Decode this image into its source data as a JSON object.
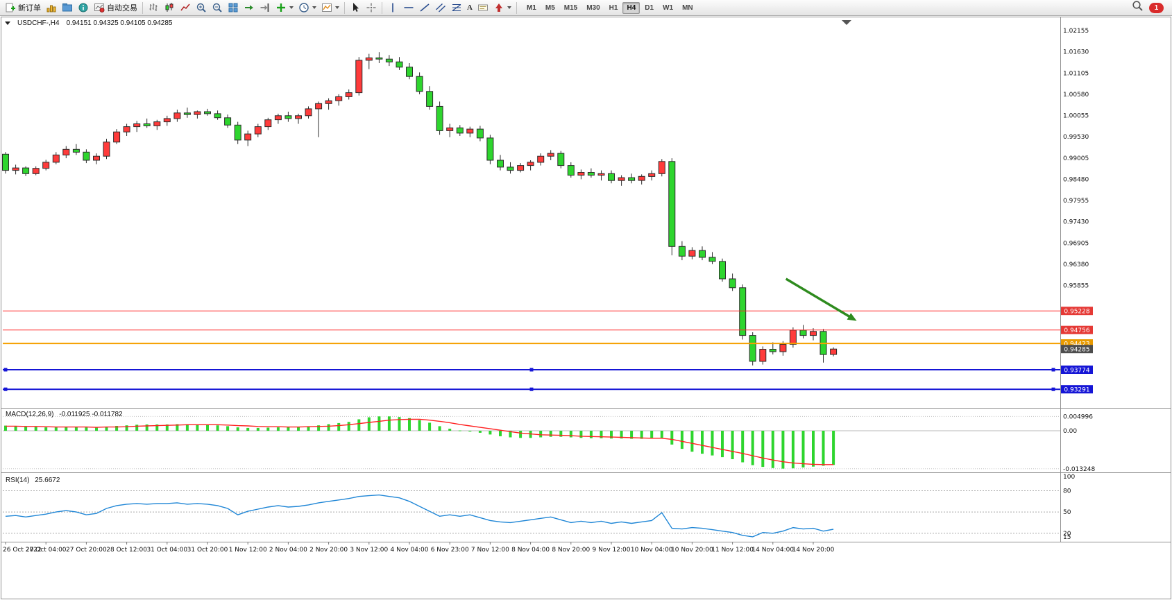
{
  "toolbar": {
    "new_order_label": "新订单",
    "auto_trading_label": "自动交易",
    "text_tool_label": "A",
    "timeframes": [
      "M1",
      "M5",
      "M15",
      "M30",
      "H1",
      "H4",
      "D1",
      "W1",
      "MN"
    ],
    "active_timeframe": "H4",
    "notification_badge": "1"
  },
  "chart": {
    "title_symbol": "USDCHF-,H4",
    "title_ohlc": "0.94151 0.94325 0.94105 0.94285",
    "macd_label": "MACD(12,26,9)",
    "macd_values": "-0.011925 -0.011782",
    "rsi_label": "RSI(14)",
    "rsi_value": "25.6672"
  },
  "chart_data": {
    "type": "candlestick",
    "symbol": "USDCHF-",
    "timeframe": "H4",
    "current_bar": {
      "open": 0.94151,
      "high": 0.94325,
      "low": 0.94105,
      "close": 0.94285
    },
    "colors": {
      "up": "#ff3b3b",
      "down": "#2ed52e",
      "wick": "#2b2b2b",
      "macd_hist": "#2ed52e",
      "macd_signal": "#ff2020",
      "rsi_line": "#1f86d6"
    },
    "price_axis": {
      "top_price": 1.02464,
      "bottom_price": 0.92831,
      "labels": [
        "1.02155",
        "1.01630",
        "1.01105",
        "1.00580",
        "1.00055",
        "0.99530",
        "0.99005",
        "0.98480",
        "0.97955",
        "0.97430",
        "0.96905",
        "0.96380",
        "0.95855"
      ]
    },
    "time_labels": [
      "26 Oct 2022",
      "27 Oct 04:00",
      "27 Oct 20:00",
      "28 Oct 12:00",
      "31 Oct 04:00",
      "31 Oct 20:00",
      "1 Nov 12:00",
      "2 Nov 04:00",
      "2 Nov 20:00",
      "3 Nov 12:00",
      "4 Nov 04:00",
      "6 Nov 23:00",
      "7 Nov 12:00",
      "8 Nov 04:00",
      "8 Nov 20:00",
      "9 Nov 12:00",
      "10 Nov 04:00",
      "10 Nov 20:00",
      "11 Nov 12:00",
      "14 Nov 04:00",
      "14 Nov 20:00"
    ],
    "bars_per_time_label": 4,
    "candles": [
      [
        0.991,
        0.9915,
        0.9862,
        0.987
      ],
      [
        0.987,
        0.9884,
        0.986,
        0.9876
      ],
      [
        0.9876,
        0.988,
        0.9856,
        0.9862
      ],
      [
        0.9862,
        0.988,
        0.9858,
        0.9875
      ],
      [
        0.9875,
        0.9896,
        0.987,
        0.989
      ],
      [
        0.989,
        0.9915,
        0.9885,
        0.9908
      ],
      [
        0.9908,
        0.993,
        0.99,
        0.9922
      ],
      [
        0.9922,
        0.9935,
        0.9908,
        0.9915
      ],
      [
        0.9915,
        0.9922,
        0.9888,
        0.9895
      ],
      [
        0.9895,
        0.9912,
        0.9885,
        0.9905
      ],
      [
        0.9905,
        0.9948,
        0.9898,
        0.994
      ],
      [
        0.994,
        0.9972,
        0.9935,
        0.9965
      ],
      [
        0.9965,
        0.9985,
        0.9955,
        0.9978
      ],
      [
        0.9978,
        0.9992,
        0.9965,
        0.9985
      ],
      [
        0.9985,
        0.9998,
        0.9975,
        0.998
      ],
      [
        0.998,
        0.9995,
        0.997,
        0.999
      ],
      [
        0.999,
        1.0005,
        0.998,
        0.9998
      ],
      [
        0.9998,
        1.002,
        0.999,
        1.0012
      ],
      [
        1.0012,
        1.0025,
        1.0,
        1.0008
      ],
      [
        1.0008,
        1.0018,
        0.9998,
        1.0015
      ],
      [
        1.0015,
        1.0022,
        1.0005,
        1.001
      ],
      [
        1.001,
        1.0018,
        0.9995,
        1.0
      ],
      [
        1.0,
        1.0008,
        0.9975,
        0.9982
      ],
      [
        0.9982,
        0.999,
        0.9935,
        0.9945
      ],
      [
        0.9945,
        0.9968,
        0.993,
        0.996
      ],
      [
        0.996,
        0.9985,
        0.9952,
        0.9978
      ],
      [
        0.9978,
        1.0,
        0.997,
        0.9995
      ],
      [
        0.9995,
        1.001,
        0.9985,
        1.0005
      ],
      [
        1.0005,
        1.0015,
        0.999,
        0.9998
      ],
      [
        0.9998,
        1.001,
        0.9985,
        1.0005
      ],
      [
        1.0005,
        1.0028,
        0.9998,
        1.0022
      ],
      [
        1.0022,
        1.004,
        0.9952,
        1.0035
      ],
      [
        1.0035,
        1.0048,
        1.002,
        1.0042
      ],
      [
        1.0042,
        1.0058,
        1.003,
        1.0052
      ],
      [
        1.0052,
        1.007,
        1.0045,
        1.0062
      ],
      [
        1.0062,
        1.015,
        1.0055,
        1.0142
      ],
      [
        1.0142,
        1.0158,
        1.012,
        1.0148
      ],
      [
        1.0148,
        1.0162,
        1.0135,
        1.0145
      ],
      [
        1.0145,
        1.0155,
        1.0128,
        1.0138
      ],
      [
        1.0138,
        1.015,
        1.0118,
        1.0125
      ],
      [
        1.0125,
        1.0135,
        1.0095,
        1.0102
      ],
      [
        1.0102,
        1.0112,
        1.0058,
        1.0065
      ],
      [
        1.0065,
        1.0078,
        1.002,
        1.0028
      ],
      [
        1.0028,
        1.004,
        0.9958,
        0.9968
      ],
      [
        0.9968,
        0.9985,
        0.9952,
        0.9975
      ],
      [
        0.9975,
        0.9982,
        0.9955,
        0.9962
      ],
      [
        0.9962,
        0.9978,
        0.9952,
        0.9972
      ],
      [
        0.9972,
        0.998,
        0.9942,
        0.995
      ],
      [
        0.995,
        0.9958,
        0.9885,
        0.9895
      ],
      [
        0.9895,
        0.9908,
        0.987,
        0.9878
      ],
      [
        0.9878,
        0.989,
        0.9862,
        0.987
      ],
      [
        0.987,
        0.9888,
        0.9865,
        0.9882
      ],
      [
        0.9882,
        0.9895,
        0.987,
        0.989
      ],
      [
        0.989,
        0.9912,
        0.9882,
        0.9905
      ],
      [
        0.9905,
        0.992,
        0.9895,
        0.9912
      ],
      [
        0.9912,
        0.9918,
        0.9875,
        0.9882
      ],
      [
        0.9882,
        0.989,
        0.9852,
        0.9858
      ],
      [
        0.9858,
        0.9872,
        0.9848,
        0.9865
      ],
      [
        0.9865,
        0.9875,
        0.9852,
        0.9858
      ],
      [
        0.9858,
        0.987,
        0.9845,
        0.9862
      ],
      [
        0.9862,
        0.987,
        0.9838,
        0.9845
      ],
      [
        0.9845,
        0.9858,
        0.9832,
        0.9852
      ],
      [
        0.9852,
        0.9862,
        0.9838,
        0.9845
      ],
      [
        0.9845,
        0.986,
        0.9835,
        0.9855
      ],
      [
        0.9855,
        0.987,
        0.9845,
        0.9862
      ],
      [
        0.9862,
        0.9898,
        0.9855,
        0.9892
      ],
      [
        0.9892,
        0.99,
        0.966,
        0.9682
      ],
      [
        0.9682,
        0.9695,
        0.9648,
        0.9658
      ],
      [
        0.9658,
        0.968,
        0.965,
        0.9672
      ],
      [
        0.9672,
        0.9682,
        0.9648,
        0.9655
      ],
      [
        0.9655,
        0.9668,
        0.9638,
        0.9645
      ],
      [
        0.9645,
        0.9652,
        0.9595,
        0.9602
      ],
      [
        0.9602,
        0.9615,
        0.9572,
        0.958
      ],
      [
        0.958,
        0.9588,
        0.9452,
        0.9462
      ],
      [
        0.9462,
        0.947,
        0.9388,
        0.9398
      ],
      [
        0.9398,
        0.9435,
        0.939,
        0.9428
      ],
      [
        0.9428,
        0.9445,
        0.9415,
        0.9422
      ],
      [
        0.9422,
        0.9448,
        0.9412,
        0.944
      ],
      [
        0.944,
        0.9482,
        0.9432,
        0.9475
      ],
      [
        0.9475,
        0.9488,
        0.9455,
        0.9462
      ],
      [
        0.9462,
        0.948,
        0.945,
        0.9472
      ],
      [
        0.9472,
        0.9478,
        0.9395,
        0.9415
      ],
      [
        0.94151,
        0.94325,
        0.94105,
        0.94285
      ]
    ],
    "h_lines": [
      {
        "price": 0.95228,
        "label": "0.95228",
        "color": "#ff2b2b",
        "tag_color": "#e53935",
        "width": 1,
        "selected": false
      },
      {
        "price": 0.94756,
        "label": "0.94756",
        "color": "#ff2b2b",
        "tag_color": "#e53935",
        "width": 1,
        "selected": false
      },
      {
        "price": 0.94423,
        "label": "0.94423",
        "color": "#f5a000",
        "tag_color": "#e89a00",
        "width": 2,
        "selected": false
      },
      {
        "price": 0.93774,
        "label": "0.93774",
        "color": "#1515d6",
        "tag_color": "#1515d6",
        "width": 2,
        "selected": true
      },
      {
        "price": 0.93291,
        "label": "0.93291",
        "color": "#1515d6",
        "tag_color": "#1515d6",
        "width": 2,
        "selected": true
      }
    ],
    "current_price": {
      "price": 0.94285,
      "label": "0.94285",
      "tag_color": "#4d4d4d"
    },
    "arrow": {
      "from_bar": 77.3,
      "from_price": 0.9602,
      "to_bar": 84.3,
      "to_price": 0.9498,
      "color": "#2e8b1e"
    },
    "macd": {
      "scale_max": 0.0075,
      "scale_min": -0.0145,
      "axis_labels": [
        {
          "v": 0.004996,
          "t": "0.004996"
        },
        {
          "v": 0,
          "t": "0.00"
        },
        {
          "v": -0.013248,
          "t": "-0.013248"
        }
      ],
      "histogram": [
        0.0018,
        0.0016,
        0.0015,
        0.0013,
        0.0012,
        0.0012,
        0.0013,
        0.0013,
        0.0012,
        0.0012,
        0.0014,
        0.0017,
        0.0019,
        0.0021,
        0.0022,
        0.0022,
        0.0022,
        0.0023,
        0.0023,
        0.0022,
        0.0021,
        0.0019,
        0.0016,
        0.0012,
        0.001,
        0.001,
        0.0011,
        0.0012,
        0.0013,
        0.0014,
        0.0016,
        0.0019,
        0.0023,
        0.0027,
        0.0031,
        0.004,
        0.0047,
        0.005,
        0.005,
        0.0048,
        0.0044,
        0.0037,
        0.0028,
        0.0016,
        0.0007,
        0.0001,
        -0.0003,
        -0.0007,
        -0.0013,
        -0.0019,
        -0.0023,
        -0.0025,
        -0.0025,
        -0.0023,
        -0.0021,
        -0.0021,
        -0.0023,
        -0.0025,
        -0.0026,
        -0.0026,
        -0.0027,
        -0.0027,
        -0.0028,
        -0.0028,
        -0.0027,
        -0.0025,
        -0.0048,
        -0.0063,
        -0.0073,
        -0.008,
        -0.0086,
        -0.0092,
        -0.0099,
        -0.011,
        -0.012,
        -0.0126,
        -0.013,
        -0.0132,
        -0.0131,
        -0.0128,
        -0.0125,
        -0.0122,
        -0.011925
      ],
      "signal": [
        0.0016,
        0.0016,
        0.0015,
        0.0015,
        0.0014,
        0.0013,
        0.0013,
        0.0013,
        0.0013,
        0.0012,
        0.0013,
        0.0013,
        0.0014,
        0.0016,
        0.0017,
        0.0018,
        0.0019,
        0.002,
        0.0021,
        0.0021,
        0.0021,
        0.0021,
        0.002,
        0.0018,
        0.0017,
        0.0015,
        0.0014,
        0.0014,
        0.0013,
        0.0013,
        0.0014,
        0.0015,
        0.0016,
        0.0018,
        0.0021,
        0.0025,
        0.0029,
        0.0033,
        0.0037,
        0.0039,
        0.004,
        0.004,
        0.0037,
        0.0033,
        0.0028,
        0.0022,
        0.0017,
        0.0012,
        0.0007,
        0.0002,
        -0.0003,
        -0.0008,
        -0.0011,
        -0.0014,
        -0.0015,
        -0.0016,
        -0.0017,
        -0.0019,
        -0.002,
        -0.0021,
        -0.0022,
        -0.0023,
        -0.0024,
        -0.0025,
        -0.0026,
        -0.0026,
        -0.003,
        -0.0037,
        -0.0044,
        -0.0051,
        -0.0058,
        -0.0065,
        -0.0072,
        -0.0079,
        -0.0087,
        -0.0095,
        -0.0102,
        -0.0108,
        -0.0112,
        -0.0115,
        -0.0117,
        -0.0118,
        -0.011782
      ]
    },
    "rsi": {
      "scale_max": 104,
      "scale_min": 8,
      "levels": [
        80,
        50,
        20
      ],
      "axis_labels": [
        {
          "v": 100,
          "t": "100"
        },
        {
          "v": 80,
          "t": "80"
        },
        {
          "v": 50,
          "t": "50"
        },
        {
          "v": 20,
          "t": "20"
        },
        {
          "v": 15,
          "t": "15"
        }
      ],
      "values": [
        44,
        45,
        43,
        45,
        47,
        50,
        52,
        50,
        46,
        48,
        55,
        59,
        61,
        62,
        61,
        62,
        62,
        63,
        61,
        62,
        61,
        59,
        55,
        46,
        51,
        54,
        57,
        59,
        57,
        58,
        60,
        63,
        65,
        67,
        69,
        72,
        73,
        74,
        72,
        70,
        65,
        58,
        51,
        44,
        46,
        44,
        46,
        42,
        38,
        36,
        35,
        37,
        39,
        41,
        43,
        39,
        35,
        37,
        35,
        37,
        34,
        36,
        34,
        36,
        38,
        49,
        27,
        26,
        28,
        27,
        25,
        23,
        21,
        17,
        15,
        21,
        20,
        23,
        28,
        26,
        27,
        23,
        25.6672
      ]
    }
  }
}
